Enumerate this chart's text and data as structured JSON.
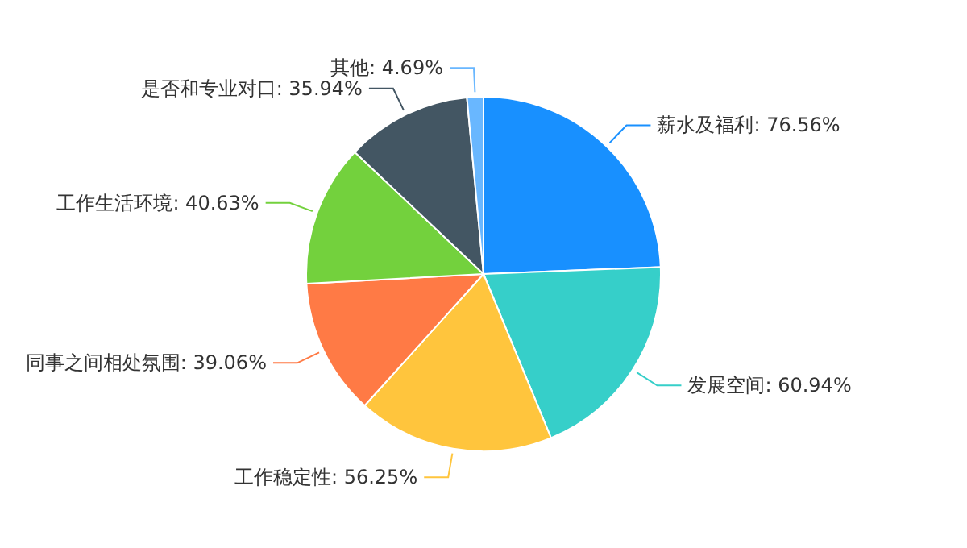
{
  "chart_data": {
    "type": "pie",
    "categories": [
      "薪水及福利",
      "发展空间",
      "工作稳定性",
      "同事之间相处氛围",
      "工作生活环境",
      "是否和专业对口",
      "其他"
    ],
    "values": [
      76.56,
      60.94,
      56.25,
      39.06,
      40.63,
      35.94,
      4.69
    ],
    "colors": [
      "#1890ff",
      "#36cfc9",
      "#ffc53d",
      "#ff7a45",
      "#73d13d",
      "#435663",
      "#69b7ff"
    ],
    "value_labels": [
      "76.56%",
      "60.94%",
      "56.25%",
      "39.06%",
      "40.63%",
      "35.94%",
      "4.69%"
    ]
  }
}
